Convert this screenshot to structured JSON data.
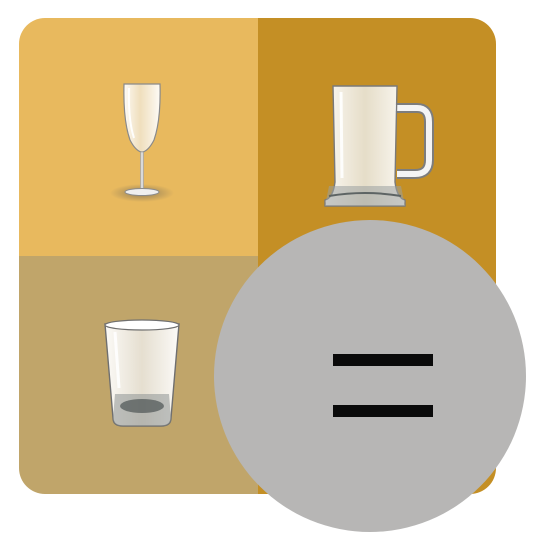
{
  "icons": {
    "top_left": "champagne-flute-icon",
    "top_right": "beer-mug-icon",
    "bottom_left": "shot-glass-icon",
    "result": "equals-icon"
  },
  "colors": {
    "top_left_bg": "#e8b95e",
    "top_right_bg": "#c48f25",
    "bottom_left_bg": "#c0a56a",
    "bottom_right_bg": "#c48f25",
    "circle_bg": "#b7b6b5",
    "equals_bar": "#0a0a0a"
  }
}
